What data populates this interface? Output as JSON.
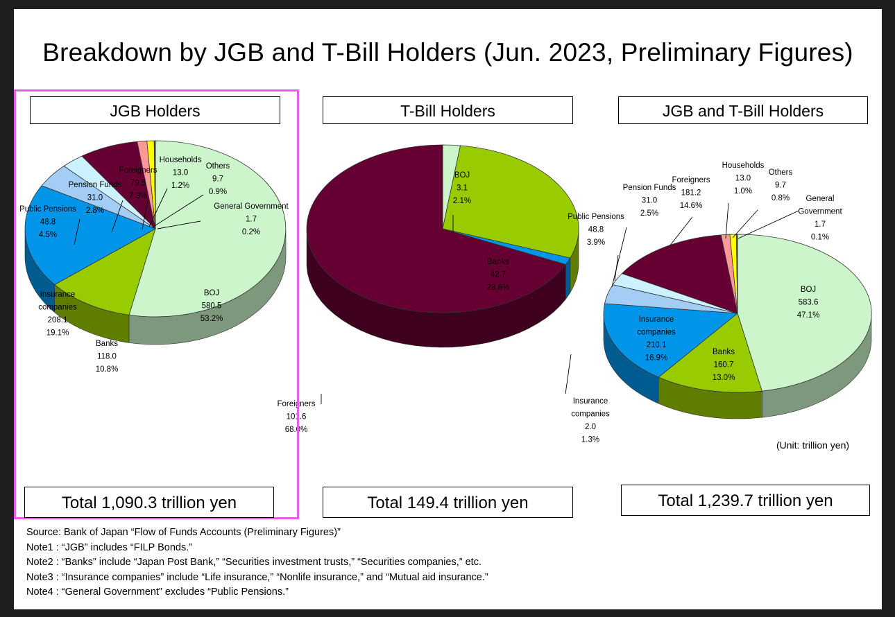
{
  "title": "Breakdown by JGB and T-Bill Holders (Jun. 2023, Preliminary Figures)",
  "unit": "(Unit: trillion yen)",
  "notes": [
    "Source: Bank of Japan “Flow of Funds Accounts (Preliminary Figures)”",
    "Note1 : “JGB” includes “FILP Bonds.”",
    "Note2 : “Banks” include “Japan Post Bank,” “Securities investment trusts,” “Securities companies,” etc.",
    "Note3 : “Insurance companies” include “Life insurance,” “Nonlife insurance,” and “Mutual aid insurance.”",
    "Note4 : “General Government” excludes “Public Pensions.”"
  ],
  "colors": {
    "BOJ": "#ccf5cc",
    "Banks": "#99cc00",
    "Insurance companies": "#0095e8",
    "Public Pensions": "#a3cdf5",
    "Pension Funds": "#ccf2ff",
    "Foreigners": "#660033",
    "Households": "#ff9999",
    "Others": "#ffff00",
    "General Government": "#555555",
    "highlight": "#e85ee8"
  },
  "chart_data": [
    {
      "type": "pie",
      "title": "JGB Holders",
      "total_label": "Total 1,090.3 trillion yen",
      "highlighted": true,
      "slices": [
        {
          "name": "BOJ",
          "value": 580.5,
          "pct": "53.2%",
          "value_label": "580.5"
        },
        {
          "name": "Banks",
          "value": 118.0,
          "pct": "10.8%",
          "value_label": "118.0"
        },
        {
          "name": "Insurance companies",
          "value": 208.1,
          "pct": "19.1%",
          "value_label": "208.1"
        },
        {
          "name": "Public Pensions",
          "value": 48.8,
          "pct": "4.5%",
          "value_label": "48.8"
        },
        {
          "name": "Pension Funds",
          "value": 31.0,
          "pct": "2.8%",
          "value_label": "31.0"
        },
        {
          "name": "Foreigners",
          "value": 79.5,
          "pct": "7.3%",
          "value_label": "79.5"
        },
        {
          "name": "Households",
          "value": 13.0,
          "pct": "1.2%",
          "value_label": "13.0"
        },
        {
          "name": "Others",
          "value": 9.7,
          "pct": "0.9%",
          "value_label": "9.7"
        },
        {
          "name": "General Government",
          "value": 1.7,
          "pct": "0.2%",
          "value_label": "1.7"
        }
      ]
    },
    {
      "type": "pie",
      "title": "T-Bill Holders",
      "total_label": "Total 149.4 trillion yen",
      "highlighted": false,
      "slices": [
        {
          "name": "BOJ",
          "value": 3.1,
          "pct": "2.1%",
          "value_label": "3.1"
        },
        {
          "name": "Banks",
          "value": 42.7,
          "pct": "28.6%",
          "value_label": "42.7"
        },
        {
          "name": "Insurance companies",
          "value": 2.0,
          "pct": "1.3%",
          "value_label": "2.0"
        },
        {
          "name": "Foreigners",
          "value": 101.6,
          "pct": "68.0%",
          "value_label": "101.6"
        }
      ]
    },
    {
      "type": "pie",
      "title": "JGB and T-Bill Holders",
      "total_label": "Total 1,239.7 trillion yen",
      "highlighted": false,
      "slices": [
        {
          "name": "BOJ",
          "value": 583.6,
          "pct": "47.1%",
          "value_label": "583.6"
        },
        {
          "name": "Banks",
          "value": 160.7,
          "pct": "13.0%",
          "value_label": "160.7"
        },
        {
          "name": "Insurance companies",
          "value": 210.1,
          "pct": "16.9%",
          "value_label": "210.1"
        },
        {
          "name": "Public Pensions",
          "value": 48.8,
          "pct": "3.9%",
          "value_label": "48.8"
        },
        {
          "name": "Pension Funds",
          "value": 31.0,
          "pct": "2.5%",
          "value_label": "31.0"
        },
        {
          "name": "Foreigners",
          "value": 181.2,
          "pct": "14.6%",
          "value_label": "181.2"
        },
        {
          "name": "Households",
          "value": 13.0,
          "pct": "1.0%",
          "value_label": "13.0"
        },
        {
          "name": "Others",
          "value": 9.7,
          "pct": "0.8%",
          "value_label": "9.7"
        },
        {
          "name": "General Government",
          "value": 1.7,
          "pct": "0.1%",
          "value_label": "1.7"
        }
      ]
    }
  ]
}
